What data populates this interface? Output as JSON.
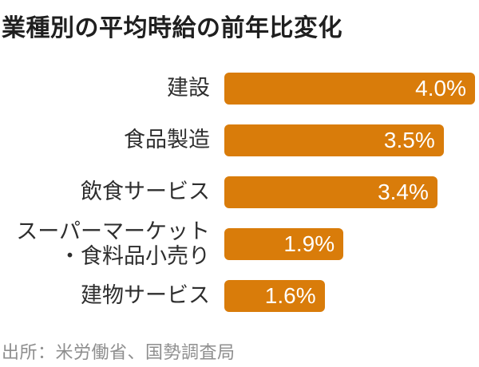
{
  "title": "業種別の平均時給の前年比変化",
  "source": "出所：米労働省、国勢調査局",
  "colors": {
    "bar": "#D97C0A",
    "title_text": "#1F1F1F",
    "label_text": "#2E2E2E",
    "value_text": "#FFFFFF",
    "source_text": "#8E8E8E",
    "background": "#FFFFFF"
  },
  "chart_data": {
    "type": "bar",
    "orientation": "horizontal",
    "title": "業種別の平均時給の前年比変化",
    "categories": [
      "建設",
      "食品製造",
      "飲食サービス",
      "スーパーマーケット\n・食料品小売り",
      "建物サービス"
    ],
    "values": [
      4.0,
      3.5,
      3.4,
      1.9,
      1.6
    ],
    "value_labels": [
      "4.0%",
      "3.5%",
      "3.4%",
      "1.9%",
      "1.6%"
    ],
    "unit": "%",
    "xlabel": "",
    "ylabel": "",
    "xlim": [
      0,
      4.0
    ],
    "grid": false,
    "legend": false,
    "value_label_position": "inside-right",
    "source": "出所：米労働省、国勢調査局"
  }
}
